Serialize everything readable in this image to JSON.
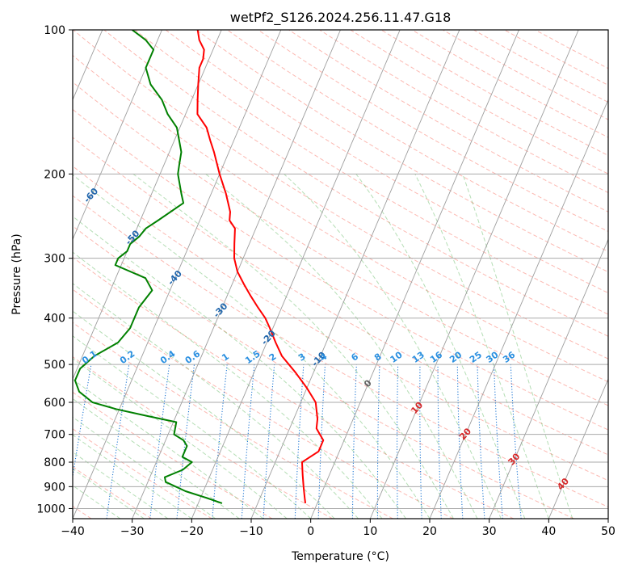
{
  "chart_data": {
    "type": "line",
    "title": "wetPf2_S126.2024.256.11.47.G18",
    "xlabel": "Temperature (°C)",
    "ylabel": "Pressure (hPa)",
    "xlim": [
      -40,
      50
    ],
    "ylim": [
      1050,
      100
    ],
    "y_scale": "log",
    "x_ticks": [
      -40,
      -30,
      -20,
      -10,
      0,
      10,
      20,
      30,
      40,
      50
    ],
    "y_ticks": [
      100,
      200,
      300,
      400,
      500,
      600,
      700,
      800,
      900,
      1000
    ],
    "grid": true,
    "series": [
      {
        "role": "temperature",
        "color": "#ff0000",
        "p": [
          975,
          950,
          900,
          850,
          800,
          760,
          720,
          700,
          680,
          650,
          600,
          560,
          520,
          480,
          450,
          420,
          400,
          380,
          360,
          340,
          320,
          300,
          280,
          260,
          250,
          240,
          220,
          200,
          180,
          170,
          160,
          150,
          140,
          130,
          120,
          115,
          110,
          105,
          100
        ],
        "t": [
          -2,
          -2.5,
          -3.5,
          -4.5,
          -5.5,
          -3.5,
          -3.5,
          -4.5,
          -5.5,
          -6,
          -7.5,
          -10,
          -13,
          -16.5,
          -18.5,
          -20.5,
          -22,
          -24,
          -26,
          -28,
          -30,
          -31.5,
          -32.5,
          -33.5,
          -35,
          -35.5,
          -37.5,
          -40,
          -42.5,
          -44,
          -45.5,
          -48,
          -49,
          -50,
          -51,
          -51,
          -51.5,
          -53,
          -54
        ]
      },
      {
        "role": "dewpoint",
        "color": "#008000",
        "p": [
          975,
          950,
          920,
          880,
          860,
          830,
          800,
          780,
          760,
          740,
          720,
          700,
          660,
          640,
          620,
          600,
          570,
          540,
          510,
          480,
          450,
          420,
          380,
          350,
          330,
          310,
          300,
          290,
          280,
          270,
          260,
          250,
          230,
          220,
          200,
          190,
          180,
          160,
          150,
          140,
          130,
          120,
          110,
          105,
          100
        ],
        "t": [
          -16,
          -19,
          -23,
          -27,
          -27.5,
          -25,
          -24,
          -26,
          -26,
          -26,
          -27,
          -29,
          -29.5,
          -35,
          -40.5,
          -45,
          -48,
          -49.5,
          -49.5,
          -48,
          -45,
          -44,
          -44,
          -43,
          -45,
          -51,
          -51,
          -50,
          -50,
          -49,
          -48.5,
          -47,
          -44,
          -45,
          -47,
          -47.5,
          -48,
          -50.5,
          -53,
          -55,
          -58,
          -60,
          -60,
          -62,
          -65
        ]
      }
    ],
    "isotherms": [
      -100,
      -90,
      -80,
      -70,
      -60,
      -50,
      -40,
      -30,
      -20,
      -10,
      0,
      10,
      20,
      30,
      40
    ],
    "mixing_ratios": [
      "0.1",
      "0.2",
      "0.4",
      "0.6",
      "1",
      "1.5",
      "2",
      "3",
      "4",
      "6",
      "8",
      "10",
      "13",
      "16",
      "20",
      "25",
      "30",
      "36"
    ]
  }
}
